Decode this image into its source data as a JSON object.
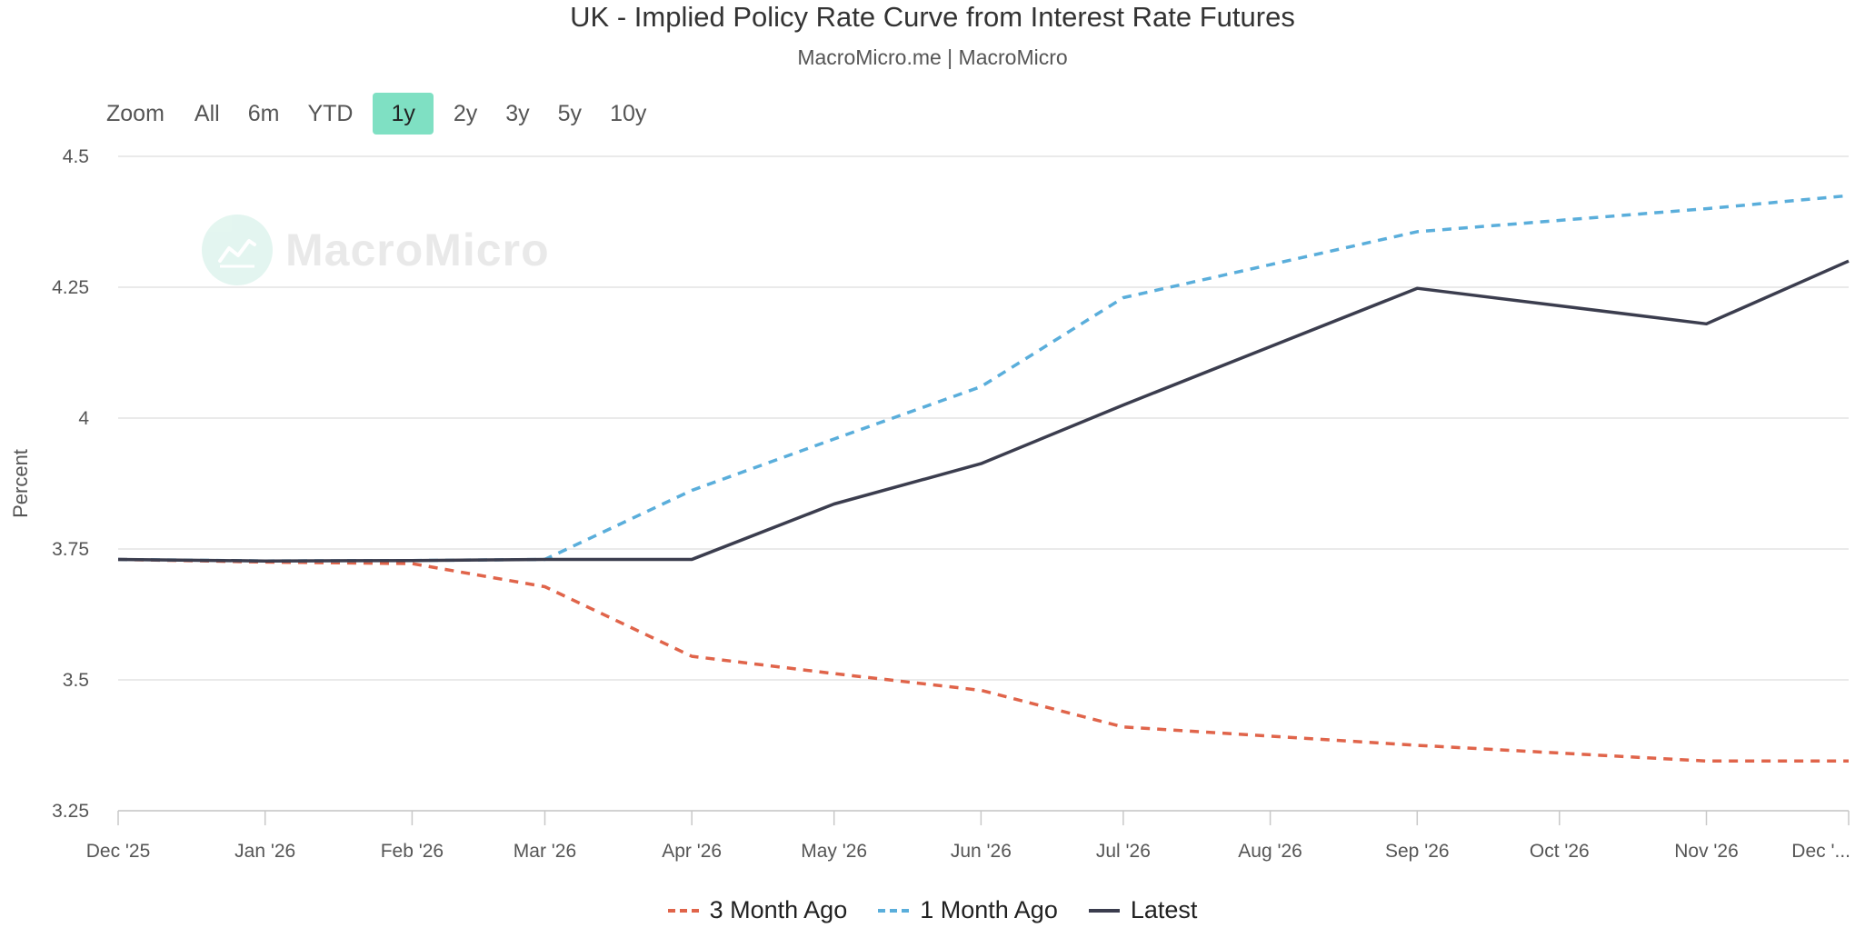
{
  "header": {
    "title": "UK - Implied Policy Rate Curve from Interest Rate Futures",
    "subtitle": "MacroMicro.me | MacroMicro"
  },
  "zoom": {
    "label": "Zoom",
    "buttons": [
      "All",
      "6m",
      "YTD",
      "1y",
      "2y",
      "3y",
      "5y",
      "10y"
    ],
    "active": "1y"
  },
  "watermark": {
    "text": "MacroMicro"
  },
  "colors": {
    "three_month_ago": "#e0644a",
    "one_month_ago": "#5aaedb",
    "latest": "#3b3d4e",
    "grid": "#e3e3e3",
    "accent": "#7fe0c3"
  },
  "chart_data": {
    "type": "line",
    "title": "UK - Implied Policy Rate Curve from Interest Rate Futures",
    "xlabel": "",
    "ylabel": "Percent",
    "ylim": [
      3.25,
      4.5
    ],
    "yticks": [
      "4.5",
      "4.25",
      "4",
      "3.75",
      "3.5",
      "3.25"
    ],
    "ytick_values": [
      4.5,
      4.25,
      4.0,
      3.75,
      3.5,
      3.25
    ],
    "categories": [
      "Dec '25",
      "Jan '26",
      "Feb '26",
      "Mar '26",
      "Apr '26",
      "May '26",
      "Jun '26",
      "Jul '26",
      "Aug '26",
      "Sep '26",
      "Oct '26",
      "Nov '26",
      "Dec '..."
    ],
    "x_days": [
      0,
      31,
      62,
      90,
      121,
      151,
      182,
      212,
      243,
      274,
      304,
      335,
      365
    ],
    "legend_position": "bottom-center",
    "grid": true,
    "series": [
      {
        "name": "3 Month Ago",
        "style": "dashed",
        "x": [
          0,
          31,
          62,
          90,
          121,
          151,
          182,
          212,
          274,
          335,
          365
        ],
        "values": [
          3.73,
          3.725,
          3.722,
          3.678,
          3.545,
          3.512,
          3.48,
          3.41,
          3.375,
          3.345,
          3.345
        ]
      },
      {
        "name": "1 Month Ago",
        "style": "dashed",
        "x": [
          0,
          31,
          62,
          90,
          121,
          151,
          182,
          212,
          274,
          335,
          365
        ],
        "values": [
          3.73,
          3.727,
          3.728,
          3.73,
          3.862,
          3.96,
          4.06,
          4.23,
          4.356,
          4.4,
          4.425
        ]
      },
      {
        "name": "Latest",
        "style": "solid",
        "x": [
          0,
          31,
          62,
          90,
          121,
          151,
          182,
          212,
          274,
          335,
          365
        ],
        "values": [
          3.73,
          3.727,
          3.728,
          3.73,
          3.73,
          3.836,
          3.913,
          4.025,
          4.248,
          4.18,
          4.3
        ]
      }
    ]
  }
}
